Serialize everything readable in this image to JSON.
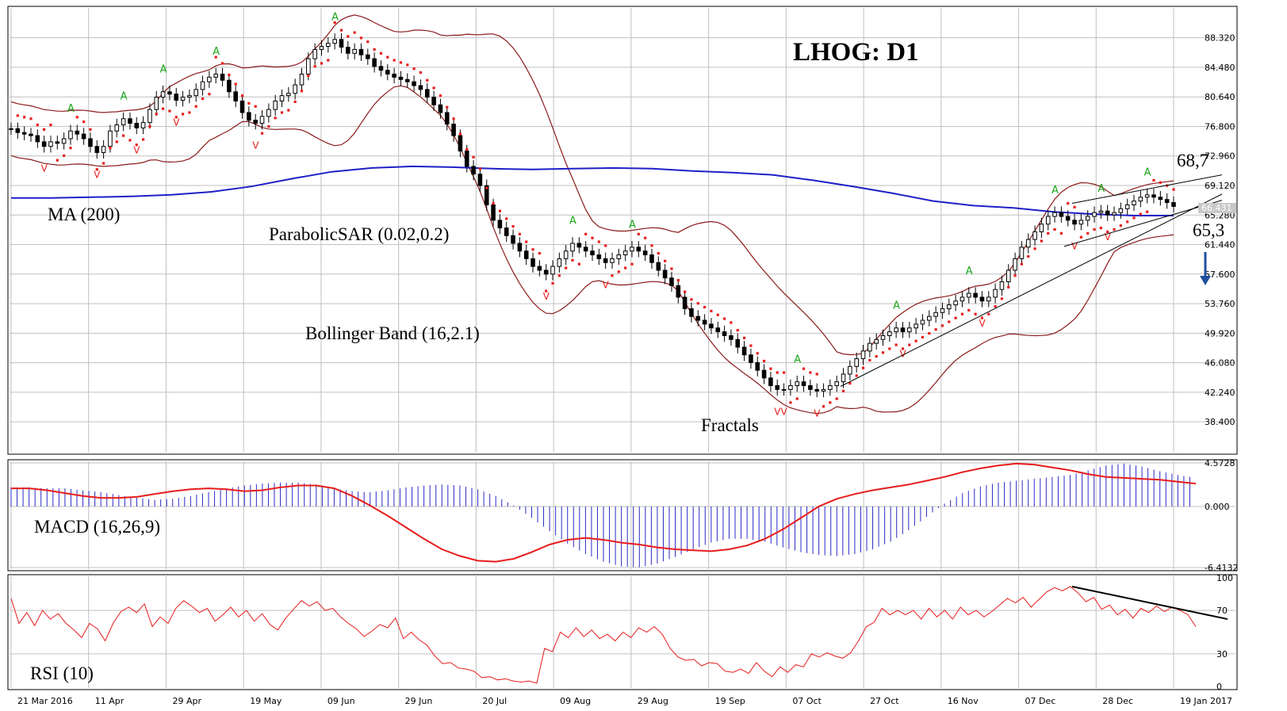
{
  "chart_data": {
    "type": "candlestick",
    "title": "LHOG: D1",
    "price_panel": {
      "y_ticks": [
        "88.320",
        "84.480",
        "80.640",
        "76.800",
        "72.960",
        "69.120",
        "65.280",
        "61.440",
        "57.600",
        "53.760",
        "49.920",
        "46.080",
        "42.240",
        "38.400"
      ],
      "current_price": "66.431",
      "ylim": [
        34.5,
        92.2
      ],
      "indicators": {
        "ma_label": "MA (200)",
        "sar_label": "ParabolicSAR (0.02,0.2)",
        "bollinger_label": "Bollinger Band (16,2.1)",
        "fractals_label": "Fractals"
      },
      "annotations": {
        "resistance_label": "68,7",
        "support_label": "65,3",
        "direction_arrow": "arrow-down"
      },
      "closes": [
        76.5,
        76.0,
        75.8,
        75.6,
        74.8,
        74.2,
        74.8,
        74.6,
        75.2,
        76.2,
        75.8,
        75.2,
        74.2,
        73.4,
        74.2,
        76.2,
        77.0,
        77.8,
        77.2,
        76.6,
        77.3,
        79.0,
        80.6,
        81.3,
        81.0,
        80.2,
        80.6,
        80.8,
        81.6,
        82.6,
        83.2,
        83.6,
        82.8,
        81.3,
        80.1,
        78.6,
        77.6,
        77.2,
        78.1,
        79.0,
        80.1,
        80.8,
        81.1,
        82.2,
        83.6,
        85.6,
        86.8,
        87.2,
        87.6,
        88.1,
        87.1,
        86.3,
        86.8,
        86.1,
        85.6,
        84.6,
        84.1,
        83.6,
        83.2,
        82.9,
        82.6,
        82.1,
        81.6,
        80.6,
        79.6,
        78.6,
        77.1,
        75.6,
        73.6,
        71.6,
        70.6,
        69.1,
        66.6,
        64.6,
        63.6,
        62.6,
        61.6,
        60.6,
        59.6,
        58.6,
        58.1,
        57.6,
        58.6,
        59.6,
        60.6,
        61.6,
        61.1,
        60.6,
        60.1,
        59.6,
        59.1,
        59.6,
        60.1,
        60.6,
        61.1,
        60.6,
        60.1,
        59.1,
        58.1,
        57.1,
        56.1,
        54.6,
        53.1,
        52.1,
        51.6,
        51.1,
        50.6,
        50.1,
        49.6,
        49.1,
        48.1,
        47.1,
        46.1,
        45.1,
        44.1,
        43.1,
        42.6,
        42.6,
        43.1,
        43.6,
        43.1,
        42.6,
        42.4,
        42.6,
        43.1,
        43.6,
        44.6,
        45.6,
        46.6,
        47.6,
        48.6,
        49.1,
        49.6,
        50.1,
        50.6,
        50.1,
        50.6,
        51.1,
        51.6,
        52.1,
        52.6,
        53.1,
        53.6,
        54.1,
        54.6,
        55.1,
        54.6,
        54.1,
        54.6,
        55.6,
        56.6,
        58.1,
        59.6,
        61.1,
        62.1,
        63.1,
        64.1,
        65.1,
        65.6,
        65.1,
        64.6,
        64.1,
        64.6,
        65.1,
        65.6,
        65.8,
        65.3,
        65.6,
        66.1,
        66.6,
        67.1,
        67.6,
        67.9,
        67.6,
        67.3,
        66.9,
        66.4
      ],
      "ma200": [
        67.5,
        67.5,
        67.6,
        67.7,
        67.9,
        68.3,
        69.0,
        70.0,
        70.9,
        71.4,
        71.6,
        71.5,
        71.3,
        71.2,
        71.3,
        71.4,
        71.3,
        71.0,
        70.8,
        70.5,
        69.8,
        69.0,
        68.1,
        67.1,
        66.5,
        66.2,
        65.7,
        65.4,
        65.2,
        65.2
      ],
      "x_labels": [
        "21 Mar 2016",
        "11 Apr",
        "29 Apr",
        "19 May",
        "09 Jun",
        "29 Jun",
        "20 Jul",
        "09 Aug",
        "29 Aug",
        "19 Sep",
        "07 Oct",
        "27 Oct",
        "16 Nov",
        "07 Dec",
        "28 Dec",
        "19 Jan 2017"
      ]
    },
    "macd_panel": {
      "label": "MACD (16,26,9)",
      "y_ticks": [
        "4.5728",
        "0.000",
        "-6.4132"
      ],
      "ylim": [
        -6.4132,
        4.5728
      ],
      "hist": [
        2.0,
        2.0,
        1.9,
        1.9,
        1.7,
        1.5,
        1.2,
        0.9,
        0.7,
        0.8,
        1.1,
        1.5,
        1.9,
        2.2,
        2.4,
        2.5,
        2.5,
        2.3,
        1.9,
        1.6,
        1.5,
        1.7,
        2.0,
        2.2,
        2.3,
        2.2,
        1.8,
        1.1,
        0.1,
        -1.2,
        -2.6,
        -3.9,
        -5.0,
        -5.8,
        -6.3,
        -6.4,
        -6.0,
        -5.3,
        -4.5,
        -3.8,
        -3.4,
        -3.4,
        -3.7,
        -4.3,
        -4.8,
        -5.1,
        -5.2,
        -5.0,
        -4.5,
        -3.7,
        -2.5,
        -1.1,
        0.3,
        1.4,
        2.1,
        2.5,
        2.7,
        2.9,
        3.1,
        3.3,
        3.8,
        4.3,
        4.5,
        4.2,
        3.7,
        3.3,
        3.0
      ],
      "signal": [
        1.9,
        1.9,
        1.7,
        1.4,
        1.1,
        0.9,
        0.9,
        1.0,
        1.3,
        1.6,
        1.8,
        1.9,
        1.8,
        1.6,
        1.7,
        2.0,
        2.2,
        2.2,
        1.9,
        1.1,
        0.1,
        -1.0,
        -2.2,
        -3.4,
        -4.5,
        -5.2,
        -5.7,
        -5.8,
        -5.5,
        -4.8,
        -4.0,
        -3.5,
        -3.3,
        -3.5,
        -3.8,
        -4.0,
        -4.3,
        -4.5,
        -4.6,
        -4.7,
        -4.5,
        -4.1,
        -3.4,
        -2.4,
        -1.2,
        0.0,
        0.8,
        1.3,
        1.7,
        2.0,
        2.3,
        2.7,
        3.1,
        3.6,
        4.0,
        4.3,
        4.5,
        4.4,
        4.1,
        3.8,
        3.4,
        3.1,
        3.0,
        2.9,
        2.8,
        2.6,
        2.4
      ]
    },
    "rsi_panel": {
      "label": "RSI (10)",
      "y_ticks": [
        "100",
        "70",
        "30",
        "0"
      ],
      "ylim": [
        0,
        100
      ],
      "values": [
        81,
        58,
        68,
        56,
        70,
        62,
        67,
        58,
        52,
        45,
        58,
        53,
        42,
        58,
        69,
        73,
        68,
        76,
        55,
        64,
        58,
        72,
        79,
        74,
        68,
        72,
        60,
        66,
        73,
        64,
        70,
        60,
        67,
        57,
        52,
        63,
        71,
        79,
        74,
        78,
        70,
        72,
        64,
        58,
        53,
        46,
        51,
        57,
        54,
        63,
        44,
        50,
        43,
        38,
        28,
        21,
        22,
        17,
        16,
        14,
        8,
        9,
        6,
        7,
        5,
        4,
        5,
        3,
        35,
        32,
        50,
        45,
        54,
        46,
        52,
        44,
        48,
        42,
        50,
        45,
        54,
        50,
        55,
        48,
        35,
        27,
        24,
        25,
        19,
        22,
        21,
        14,
        13,
        16,
        12,
        22,
        14,
        9,
        18,
        13,
        20,
        18,
        30,
        27,
        31,
        28,
        26,
        31,
        42,
        55,
        59,
        72,
        66,
        70,
        66,
        70,
        62,
        72,
        64,
        70,
        62,
        73,
        66,
        70,
        64,
        69,
        75,
        81,
        77,
        82,
        73,
        80,
        87,
        91,
        88,
        92,
        86,
        78,
        82,
        71,
        75,
        66,
        71,
        63,
        72,
        68,
        74,
        69,
        73,
        70,
        66,
        55
      ],
      "trendline_label": "down-trendline"
    }
  }
}
